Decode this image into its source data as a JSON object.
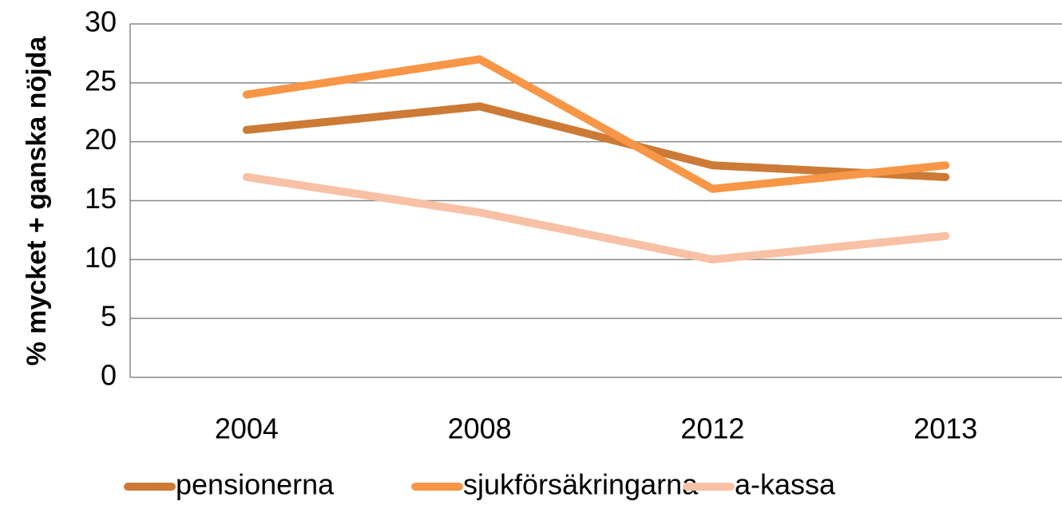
{
  "chart_data": {
    "type": "line",
    "ylabel": "% mycket + ganska nöjda",
    "categories": [
      "2004",
      "2008",
      "2012",
      "2013"
    ],
    "series": [
      {
        "name": "pensionerna",
        "color": "#cc7a35",
        "values": [
          21,
          23,
          18,
          17
        ]
      },
      {
        "name": "sjukförsäkringarna",
        "color": "#f79646",
        "values": [
          24,
          27,
          16,
          18
        ]
      },
      {
        "name": "a-kassa",
        "color": "#f8c0a4",
        "values": [
          17,
          14,
          10,
          12
        ]
      }
    ],
    "ylim": [
      0,
      30
    ],
    "yticks": [
      0,
      5,
      10,
      15,
      20,
      25,
      30
    ],
    "grid": true,
    "legend": "bottom"
  }
}
